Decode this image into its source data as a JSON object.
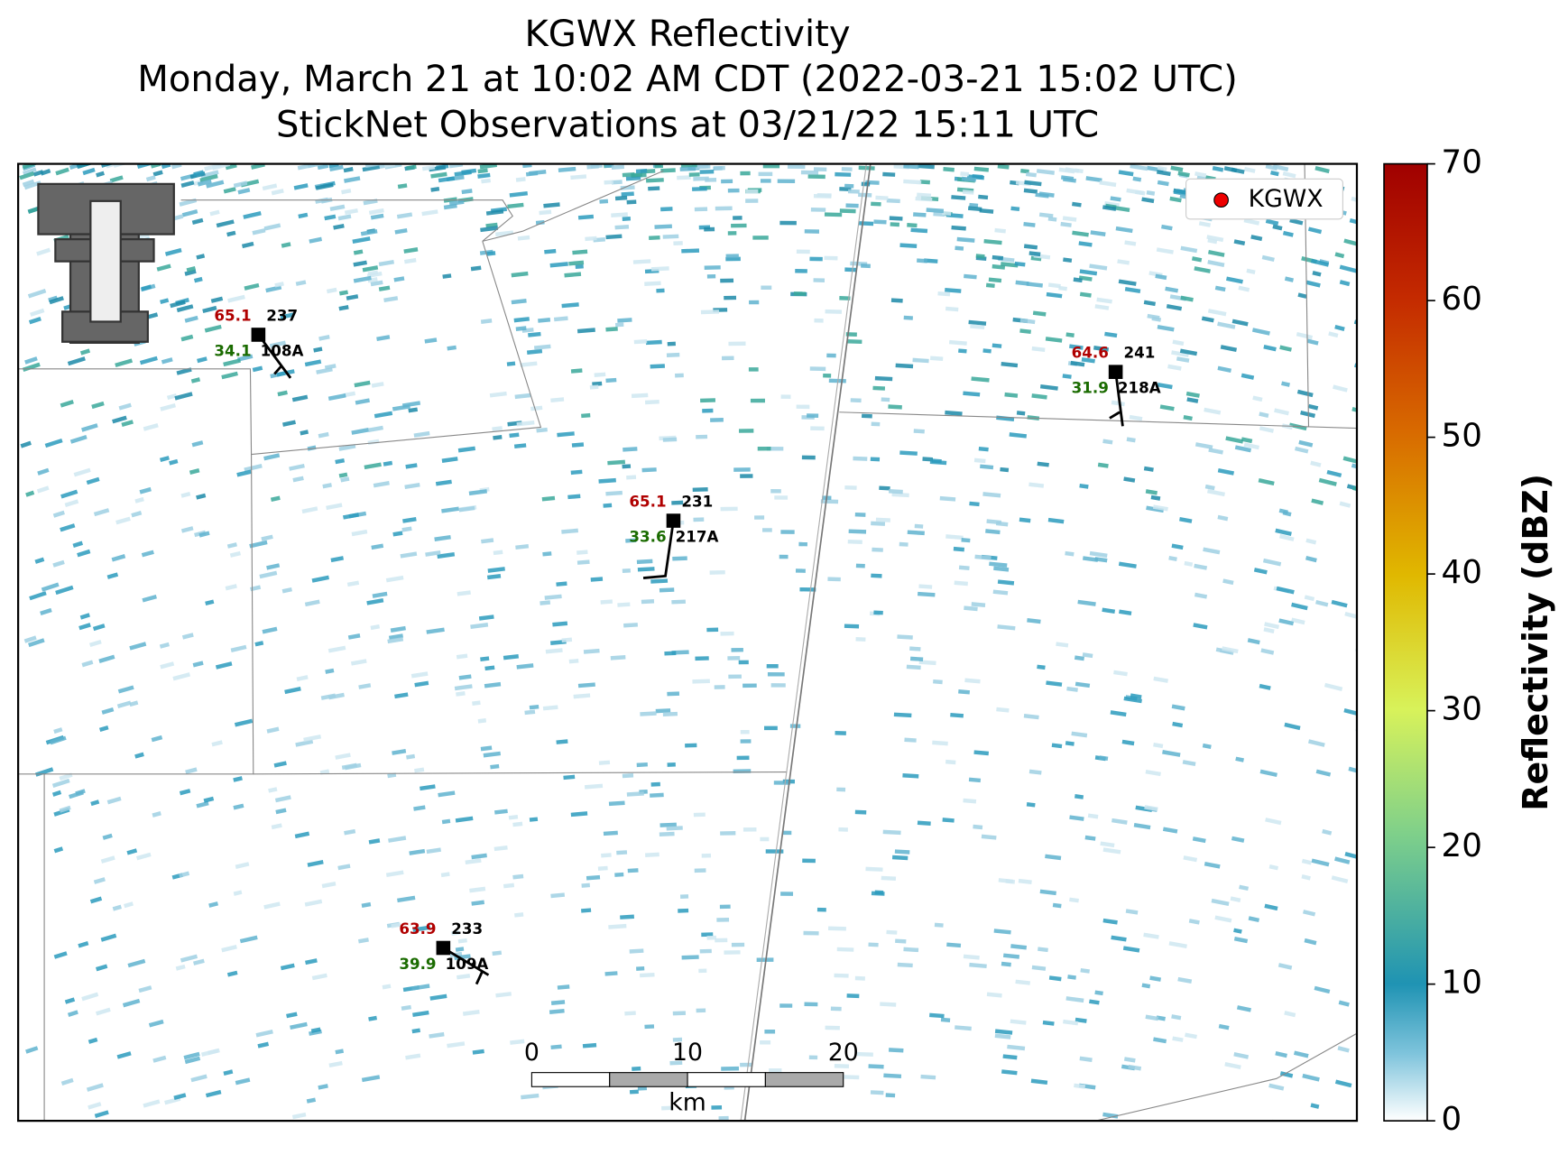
{
  "title": [
    "KGWX Reflectivity",
    "Monday, March 21 at 10:02 AM CDT (2022-03-21 15:02 UTC)",
    "StickNet Observations at 03/21/22 15:11 UTC"
  ],
  "legend": "KGWX",
  "stations": [
    {
      "id": "108A",
      "temp": 65.1,
      "dew": 34.1,
      "dir": 237
    },
    {
      "id": "217A",
      "temp": 65.1,
      "dew": 33.6,
      "dir": 231
    },
    {
      "id": "218A",
      "temp": 64.6,
      "dew": 31.9,
      "dir": 241
    },
    {
      "id": "109A",
      "temp": 63.9,
      "dew": 39.9,
      "dir": 233
    }
  ],
  "colorbar": {
    "label": "Reflectivity (dBZ)",
    "lim": [
      0,
      70
    ],
    "ticks": [
      0,
      10,
      20,
      30,
      40,
      50,
      60,
      70
    ]
  },
  "scale_bar": {
    "ticks": [
      0,
      10,
      20
    ],
    "unit": "km"
  }
}
